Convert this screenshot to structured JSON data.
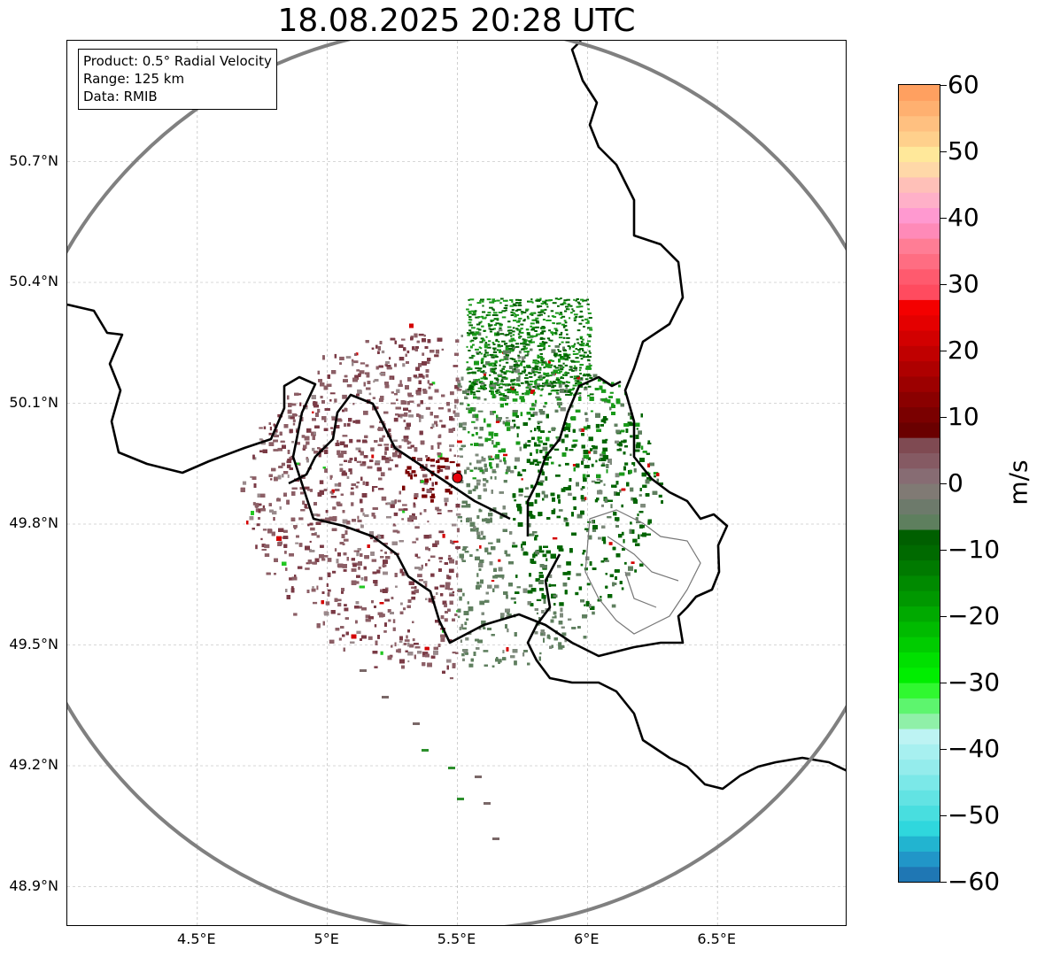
{
  "title": "18.08.2025 20:28 UTC",
  "info_box": {
    "product": "Product: 0.5° Radial Velocity",
    "range": "Range: 125 km",
    "data": "Data: RMIB"
  },
  "map": {
    "lon_range": [
      4.0,
      7.0
    ],
    "lat_range": [
      48.8,
      51.0
    ],
    "radar_site": {
      "lon": 5.5,
      "lat": 49.915
    },
    "radar_marker_color": "#e8000b",
    "range_ring_color": "#808080",
    "border_color": "#000000",
    "grid": true,
    "lat_ticks": [
      {
        "value": 50.7,
        "label": "50.7°N"
      },
      {
        "value": 50.4,
        "label": "50.4°N"
      },
      {
        "value": 50.1,
        "label": "50.1°N"
      },
      {
        "value": 49.8,
        "label": "49.8°N"
      },
      {
        "value": 49.5,
        "label": "49.5°N"
      },
      {
        "value": 49.2,
        "label": "49.2°N"
      },
      {
        "value": 48.9,
        "label": "48.9°N"
      }
    ],
    "lon_ticks": [
      {
        "value": 4.5,
        "label": "4.5°E"
      },
      {
        "value": 5.0,
        "label": "5°E"
      },
      {
        "value": 5.5,
        "label": "5.5°E"
      },
      {
        "value": 6.0,
        "label": "6°E"
      },
      {
        "value": 6.5,
        "label": "6.5°E"
      }
    ],
    "velocity_colors": {
      "strong_inbound": "#006400",
      "inbound": "#1a9a1a",
      "light_inbound": "#5f7f5f",
      "light_outbound": "#8c5f66",
      "outbound": "#7a3a45",
      "strong_outbound": "#7a0000"
    }
  },
  "colorbar": {
    "unit": "m/s",
    "min": -60,
    "max": 60,
    "ticks": [
      {
        "value": 60,
        "label": "60"
      },
      {
        "value": 50,
        "label": "50"
      },
      {
        "value": 40,
        "label": "40"
      },
      {
        "value": 30,
        "label": "30"
      },
      {
        "value": 20,
        "label": "20"
      },
      {
        "value": 10,
        "label": "10"
      },
      {
        "value": 0,
        "label": "0"
      },
      {
        "value": -10,
        "label": "−10"
      },
      {
        "value": -20,
        "label": "−20"
      },
      {
        "value": -30,
        "label": "−30"
      },
      {
        "value": -40,
        "label": "−40"
      },
      {
        "value": -50,
        "label": "−50"
      },
      {
        "value": -60,
        "label": "−60"
      }
    ],
    "colors_bottom_to_top": [
      "#1f77b4",
      "#2196c8",
      "#22b4d0",
      "#2fd7dd",
      "#48dedf",
      "#62e3e3",
      "#7be8e8",
      "#94ecec",
      "#a7f0f0",
      "#bdf3f3",
      "#8ff0a8",
      "#5df56e",
      "#30f830",
      "#00ee00",
      "#00e000",
      "#00cc00",
      "#00bb00",
      "#00aa00",
      "#009800",
      "#008a00",
      "#007a00",
      "#006a00",
      "#005f00",
      "#5e7f5e",
      "#6d7a6b",
      "#807a74",
      "#876c73",
      "#855a63",
      "#7f4a52",
      "#6a0000",
      "#7a0000",
      "#8a0000",
      "#9c0000",
      "#ae0000",
      "#c00000",
      "#d20000",
      "#e40000",
      "#f40000",
      "#ff4b5f",
      "#ff5a6e",
      "#ff6d82",
      "#ff7d95",
      "#ff8ab8",
      "#ff99d0",
      "#ffb0c8",
      "#ffc0b8",
      "#ffd8a8",
      "#ffe89a",
      "#ffd08c",
      "#ffc080",
      "#ffb070",
      "#ffa060"
    ]
  }
}
